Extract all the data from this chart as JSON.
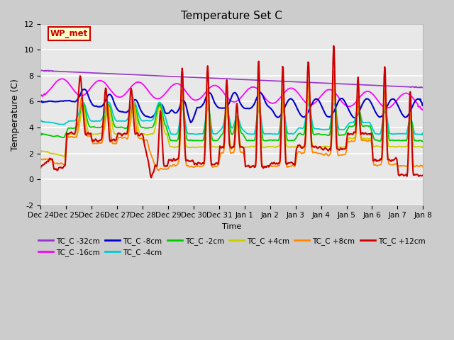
{
  "title": "Temperature Set C",
  "xlabel": "Time",
  "ylabel": "Temperature (C)",
  "ylim": [
    -2,
    12
  ],
  "series_order": [
    "TC_C -32cm",
    "TC_C -16cm",
    "TC_C -8cm",
    "TC_C -4cm",
    "TC_C -2cm",
    "TC_C +4cm",
    "TC_C +8cm",
    "TC_C +12cm"
  ],
  "series": {
    "TC_C -32cm": {
      "color": "#9933cc",
      "lw": 1.2
    },
    "TC_C -16cm": {
      "color": "#ff00ff",
      "lw": 1.3
    },
    "TC_C -8cm": {
      "color": "#0000cc",
      "lw": 1.5
    },
    "TC_C -4cm": {
      "color": "#00cccc",
      "lw": 1.3
    },
    "TC_C -2cm": {
      "color": "#00cc00",
      "lw": 1.3
    },
    "TC_C +4cm": {
      "color": "#cccc00",
      "lw": 1.3
    },
    "TC_C +8cm": {
      "color": "#ff8800",
      "lw": 1.3
    },
    "TC_C +12cm": {
      "color": "#cc0000",
      "lw": 1.5
    }
  },
  "wp_met_box": {
    "text": "WP_met",
    "facecolor": "#ffffcc",
    "edgecolor": "#cc0000",
    "textcolor": "#cc0000"
  },
  "xtick_labels": [
    "Dec 24",
    "Dec 25",
    "Dec 26",
    "Dec 27",
    "Dec 28",
    "Dec 29",
    "Dec 30",
    "Dec 31",
    "Jan 1",
    "Jan 2",
    "Jan 3",
    "Jan 4",
    "Jan 5",
    "Jan 6",
    "Jan 7",
    "Jan 8"
  ],
  "yticks": [
    -2,
    0,
    2,
    4,
    6,
    8,
    10,
    12
  ],
  "legend_row1": [
    "TC_C -32cm",
    "TC_C -16cm",
    "TC_C -8cm",
    "TC_C -4cm",
    "TC_C -2cm",
    "TC_C +4cm"
  ],
  "legend_row2": [
    "TC_C +8cm",
    "TC_C +12cm"
  ]
}
